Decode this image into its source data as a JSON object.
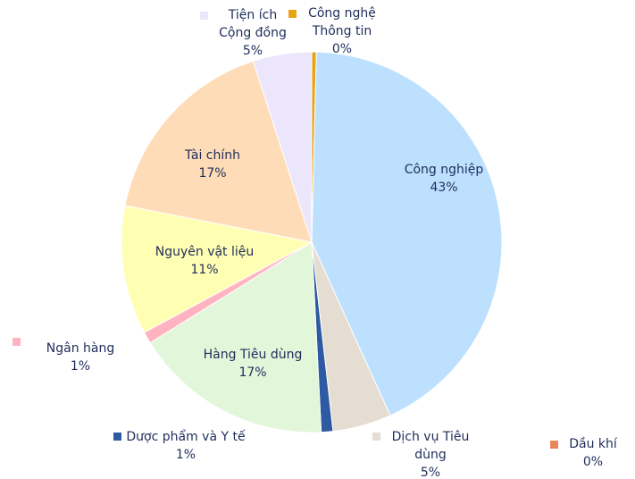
{
  "chart_data": {
    "type": "pie",
    "categories": [
      "Công nghệ Thông tin",
      "Công nghiệp",
      "Dịch vụ Tiêu dùng",
      "Dầu khí",
      "Dược phẩm và Y tế",
      "Hàng Tiêu dùng",
      "Ngân hàng",
      "Nguyên vật liệu",
      "Tài chính",
      "Tiện ích Cộng đồng"
    ],
    "values": [
      0.4,
      43,
      5,
      0,
      1,
      17,
      1,
      11,
      17,
      5
    ],
    "value_labels": [
      "0%",
      "43%",
      "5%",
      "0%",
      "1%",
      "17%",
      "1%",
      "11%",
      "17%",
      "5%"
    ],
    "colors": [
      "#e8a317",
      "#bde0fe",
      "#e6ddd2",
      "#e8875a",
      "#2d5aa0",
      "#e2f6d9",
      "#ffb3c1",
      "#ffffb3",
      "#ffdcb8",
      "#ebe6fb"
    ]
  }
}
